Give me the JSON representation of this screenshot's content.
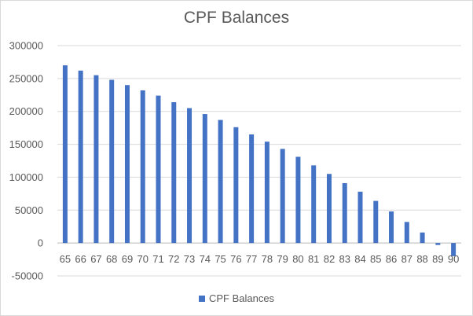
{
  "chart_data": {
    "type": "bar",
    "title": "CPF Balances",
    "xlabel": "",
    "ylabel": "",
    "categories": [
      "65",
      "66",
      "67",
      "68",
      "69",
      "70",
      "71",
      "72",
      "73",
      "74",
      "75",
      "76",
      "77",
      "78",
      "79",
      "80",
      "81",
      "82",
      "83",
      "84",
      "85",
      "86",
      "87",
      "88",
      "89",
      "90"
    ],
    "series": [
      {
        "name": "CPF Balances",
        "color": "#4472c4",
        "values": [
          270000,
          262000,
          255000,
          248000,
          240000,
          232000,
          224000,
          214000,
          205000,
          196000,
          187000,
          176000,
          165000,
          154000,
          143000,
          131000,
          118000,
          105000,
          91000,
          78000,
          64000,
          48000,
          32000,
          16000,
          -3000,
          -20000
        ]
      }
    ],
    "ylim": [
      -50000,
      300000
    ],
    "yticks": [
      -50000,
      0,
      50000,
      100000,
      150000,
      200000,
      250000,
      300000
    ],
    "grid": "horizontal",
    "legend": "bottom"
  }
}
